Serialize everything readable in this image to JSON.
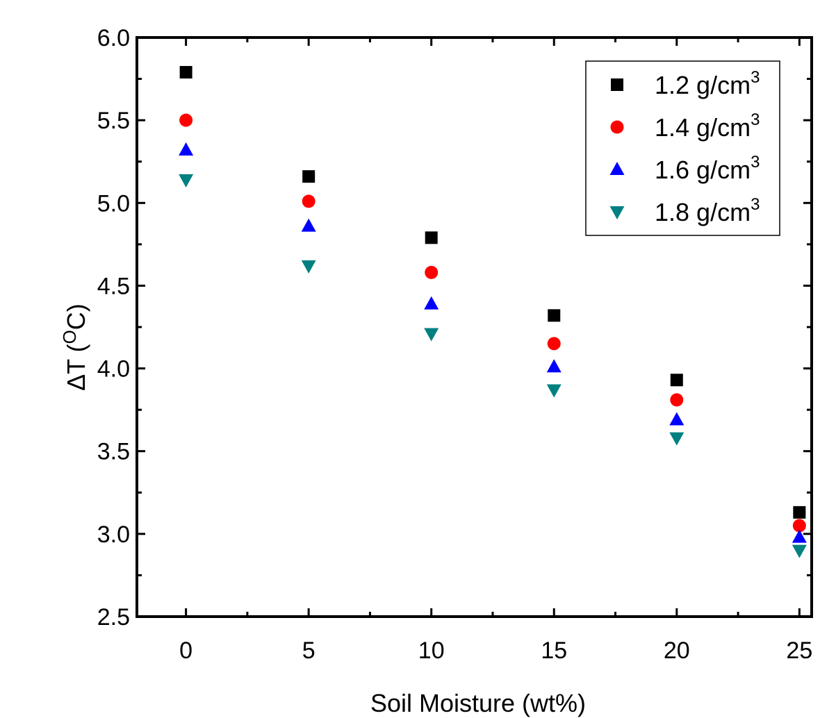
{
  "chart_data": {
    "type": "scatter",
    "title": "",
    "xlabel": "Soil Moisture (wt%)",
    "ylabel_prefix": "ΔT (",
    "ylabel_sup": "O",
    "ylabel_suffix": "C)",
    "x": [
      0,
      5,
      10,
      15,
      20,
      25
    ],
    "xlim": [
      -2,
      25.5
    ],
    "ylim": [
      2.5,
      6.0
    ],
    "x_ticks": [
      0,
      5,
      10,
      15,
      20,
      25
    ],
    "y_ticks": [
      2.5,
      3.0,
      3.5,
      4.0,
      4.5,
      5.0,
      5.5,
      6.0
    ],
    "x_tick_labels": [
      "0",
      "5",
      "10",
      "15",
      "20",
      "25"
    ],
    "y_tick_labels": [
      "2.5",
      "3.0",
      "3.5",
      "4.0",
      "4.5",
      "5.0",
      "5.5",
      "6.0"
    ],
    "grid": false,
    "legend_position": "top-right",
    "series": [
      {
        "name": "1.2 g/cm",
        "unit_sup": "3",
        "marker": "square",
        "color": "#000000",
        "values": [
          5.79,
          5.16,
          4.79,
          4.32,
          3.93,
          3.13
        ]
      },
      {
        "name": "1.4 g/cm",
        "unit_sup": "3",
        "marker": "circle",
        "color": "#ff0000",
        "values": [
          5.5,
          5.01,
          4.58,
          4.15,
          3.81,
          3.05
        ]
      },
      {
        "name": "1.6 g/cm",
        "unit_sup": "3",
        "marker": "triangle-up",
        "color": "#0000ff",
        "values": [
          5.32,
          4.86,
          4.39,
          4.01,
          3.69,
          2.98
        ]
      },
      {
        "name": "1.8 g/cm",
        "unit_sup": "3",
        "marker": "triangle-down",
        "color": "#008080",
        "values": [
          5.14,
          4.62,
          4.21,
          3.87,
          3.58,
          2.9
        ]
      }
    ]
  }
}
